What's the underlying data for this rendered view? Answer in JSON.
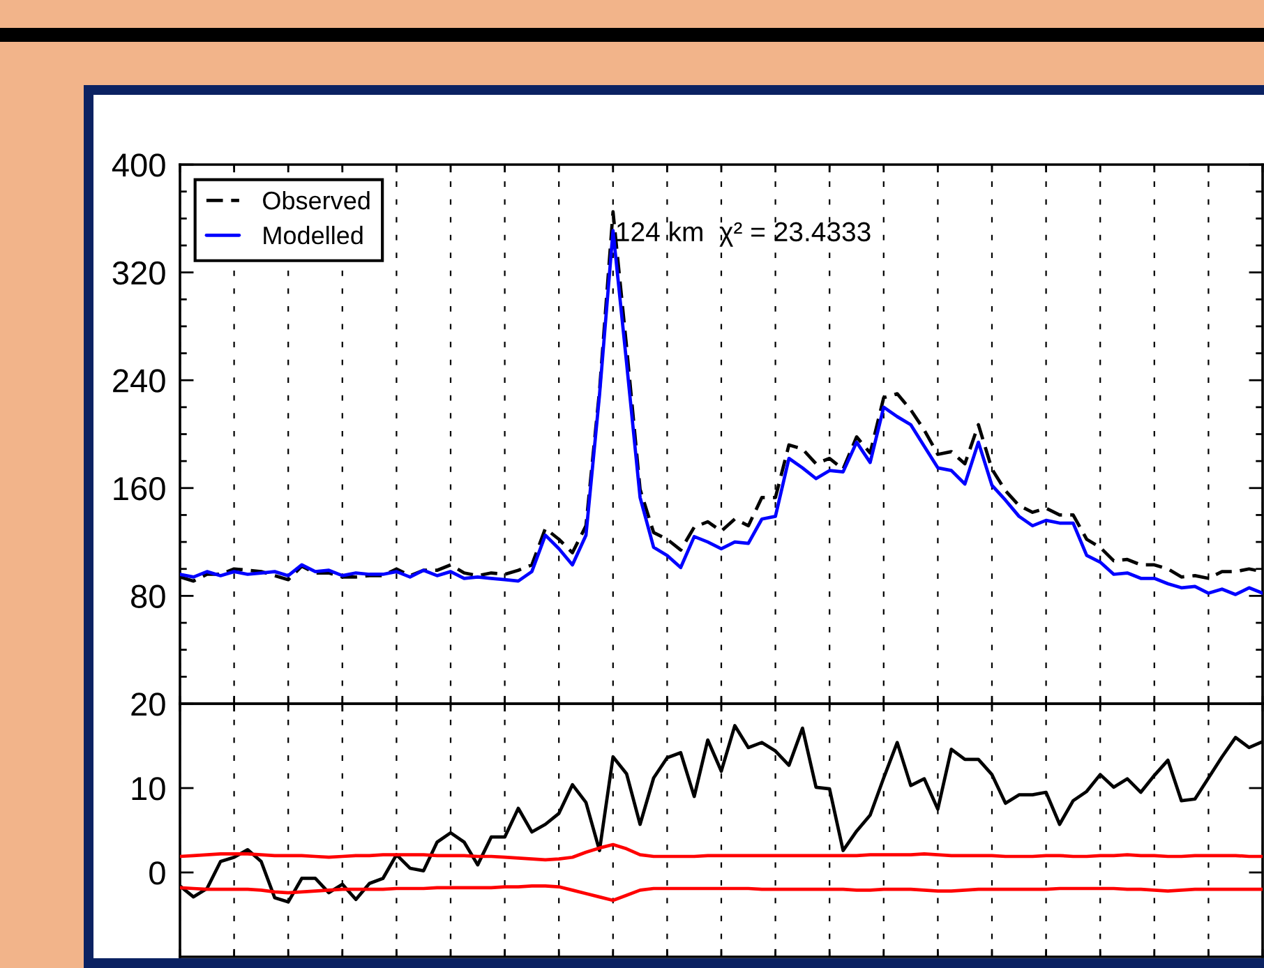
{
  "chart_data": [
    {
      "type": "line",
      "tick_labels": "y",
      "grid": "x",
      "legend": "top left",
      "categories": [
        null,
        null,
        null,
        null,
        null,
        null,
        null,
        null,
        null,
        null,
        null,
        null,
        null,
        null,
        null,
        null,
        null,
        null,
        null,
        null,
        null,
        null,
        null,
        null,
        null,
        null,
        null,
        null,
        null,
        null,
        null,
        null,
        null,
        null,
        null,
        null,
        null,
        null,
        null,
        null,
        null,
        null,
        null,
        null,
        null,
        null,
        null,
        null,
        null,
        null,
        null,
        null,
        null,
        null,
        null,
        null,
        null,
        null,
        null,
        null,
        null,
        null,
        null,
        null,
        null,
        null,
        null,
        null,
        null,
        null,
        null,
        null,
        null,
        null,
        null,
        null,
        null,
        null,
        null,
        null,
        null
      ],
      "ylim": [
        0,
        400
      ],
      "yticks": [
        {
          "value": 0,
          "label": null
        },
        {
          "value": 20,
          "label": null
        },
        {
          "value": 40,
          "label": null
        },
        {
          "value": 60,
          "label": null
        },
        80,
        {
          "value": 100,
          "label": null
        },
        {
          "value": 120,
          "label": null
        },
        {
          "value": 140,
          "label": null
        },
        160,
        {
          "value": 180,
          "label": null
        },
        {
          "value": 200,
          "label": null
        },
        {
          "value": 220,
          "label": null
        },
        240,
        {
          "value": 260,
          "label": null
        },
        {
          "value": 280,
          "label": null
        },
        {
          "value": 300,
          "label": null
        },
        320,
        {
          "value": 340,
          "label": null
        },
        {
          "value": 360,
          "label": null
        },
        {
          "value": 380,
          "label": null
        },
        400
      ],
      "series": [
        {
          "name": "Observed",
          "color": "#000000",
          "line_style": "dashed",
          "values": [
            94,
            91,
            96,
            96,
            100,
            99,
            98,
            95,
            92,
            102,
            97,
            97,
            94,
            94,
            95,
            95,
            100,
            95,
            99,
            99,
            103,
            97,
            95,
            97,
            96,
            99,
            103,
            130,
            122,
            112,
            132,
            232,
            365,
            265,
            159,
            127,
            122,
            114,
            131,
            135,
            128,
            137,
            132,
            153,
            153,
            192,
            189,
            178,
            182,
            174,
            198,
            186,
            227,
            230,
            218,
            203,
            185,
            187,
            178,
            207,
            174,
            158,
            147,
            142,
            145,
            140,
            140,
            122,
            116,
            106,
            107,
            103,
            103,
            100,
            94,
            95,
            93,
            98,
            98,
            100,
            98
          ]
        },
        {
          "name": "Modelled",
          "color": "#0000ff",
          "line_style": "solid",
          "values": [
            96,
            94,
            98,
            95,
            98,
            96,
            97,
            98,
            95,
            103,
            98,
            99,
            95,
            97,
            96,
            96,
            98,
            94,
            99,
            95,
            98,
            93,
            94,
            93,
            92,
            91,
            98,
            125,
            115,
            103,
            125,
            229,
            351,
            253,
            153,
            116,
            110,
            101,
            124,
            120,
            115,
            120,
            119,
            137,
            139,
            182,
            175,
            167,
            173,
            172,
            194,
            179,
            220,
            213,
            207,
            191,
            175,
            173,
            163,
            194,
            162,
            151,
            139,
            132,
            136,
            134,
            134,
            110,
            105,
            96,
            97,
            93,
            93,
            89,
            86,
            87,
            82,
            85,
            81,
            86,
            82
          ]
        }
      ],
      "annotations": [
        "124 km  χ² = 23.4333"
      ]
    },
    {
      "type": "line",
      "tick_labels": "y",
      "grid": "x",
      "categories": [
        null,
        null,
        null,
        null,
        null,
        null,
        null,
        null,
        null,
        null,
        null,
        null,
        null,
        null,
        null,
        null,
        null,
        null,
        null,
        null,
        null,
        null,
        null,
        null,
        null,
        null,
        null,
        null,
        null,
        null,
        null,
        null,
        null,
        null,
        null,
        null,
        null,
        null,
        null,
        null,
        null,
        null,
        null,
        null,
        null,
        null,
        null,
        null,
        null,
        null,
        null,
        null,
        null,
        null,
        null,
        null,
        null,
        null,
        null,
        null,
        null,
        null,
        null,
        null,
        null,
        null,
        null,
        null,
        null,
        null,
        null,
        null,
        null,
        null,
        null,
        null,
        null,
        null,
        null,
        null,
        null
      ],
      "ylim": [
        -10,
        20
      ],
      "yticks": [
        0,
        10,
        20
      ],
      "series": [
        {
          "color": "#000000",
          "line_style": "solid",
          "values": [
            -1.6,
            -2.9,
            -1.9,
            1.3,
            1.8,
            2.7,
            1.3,
            -3.0,
            -3.5,
            -0.7,
            -0.7,
            -2.4,
            -1.4,
            -3.2,
            -1.3,
            -0.7,
            2.1,
            0.5,
            0.2,
            3.6,
            4.7,
            3.6,
            0.9,
            4.2,
            4.2,
            7.6,
            4.8,
            5.7,
            7.0,
            10.4,
            8.3,
            2.6,
            13.7,
            11.7,
            5.7,
            11.2,
            13.6,
            14.2,
            9.0,
            15.7,
            12.0,
            17.4,
            14.8,
            15.4,
            14.4,
            12.7,
            17.1,
            10.1,
            9.9,
            2.6,
            4.9,
            6.8,
            11.2,
            15.4,
            10.3,
            11.1,
            7.5,
            14.6,
            13.4,
            13.4,
            11.6,
            8.2,
            9.2,
            9.2,
            9.5,
            5.7,
            8.5,
            9.6,
            11.6,
            10.1,
            11.1,
            9.5,
            11.5,
            13.3,
            8.5,
            8.7,
            11.2,
            13.7,
            16.0,
            14.8,
            15.5
          ]
        },
        {
          "color": "#ff0000",
          "line_style": "solid",
          "values": [
            1.9,
            2.0,
            2.1,
            2.2,
            2.2,
            2.2,
            2.1,
            2.0,
            2.0,
            2.0,
            1.9,
            1.8,
            1.9,
            2.0,
            2.0,
            2.1,
            2.1,
            2.1,
            2.1,
            2.0,
            2.0,
            2.0,
            1.9,
            1.9,
            1.8,
            1.7,
            1.6,
            1.5,
            1.6,
            1.8,
            2.4,
            2.9,
            3.3,
            2.8,
            2.1,
            1.9,
            1.9,
            1.9,
            1.9,
            2.0,
            2.0,
            2.0,
            2.0,
            2.0,
            2.0,
            2.0,
            2.0,
            2.0,
            2.0,
            2.0,
            2.0,
            2.1,
            2.1,
            2.1,
            2.1,
            2.2,
            2.1,
            2.0,
            2.0,
            2.0,
            2.0,
            1.9,
            1.9,
            1.9,
            2.0,
            2.0,
            1.9,
            1.9,
            2.0,
            2.0,
            2.1,
            2.0,
            2.0,
            1.9,
            1.9,
            2.0,
            2.0,
            2.0,
            2.0,
            1.9,
            1.9
          ]
        },
        {
          "color": "#ff0000",
          "line_style": "solid",
          "values": [
            -1.8,
            -1.9,
            -2.0,
            -2.0,
            -2.0,
            -2.0,
            -2.1,
            -2.3,
            -2.4,
            -2.3,
            -2.2,
            -2.1,
            -2.0,
            -2.0,
            -2.0,
            -2.0,
            -1.9,
            -1.9,
            -1.9,
            -1.8,
            -1.8,
            -1.8,
            -1.8,
            -1.8,
            -1.7,
            -1.7,
            -1.6,
            -1.6,
            -1.7,
            -2.1,
            -2.5,
            -2.9,
            -3.3,
            -2.7,
            -2.1,
            -1.9,
            -1.9,
            -1.9,
            -1.9,
            -1.9,
            -1.9,
            -1.9,
            -1.9,
            -2.0,
            -2.0,
            -2.0,
            -2.0,
            -2.0,
            -2.0,
            -2.0,
            -2.1,
            -2.1,
            -2.0,
            -2.0,
            -2.0,
            -2.1,
            -2.2,
            -2.2,
            -2.1,
            -2.0,
            -2.0,
            -2.0,
            -2.0,
            -2.0,
            -2.0,
            -1.9,
            -1.9,
            -1.9,
            -1.9,
            -1.9,
            -2.0,
            -2.0,
            -2.1,
            -2.2,
            -2.1,
            -2.0,
            -2.0,
            -2.0,
            -2.0,
            -2.0,
            -2.0
          ]
        }
      ]
    }
  ]
}
